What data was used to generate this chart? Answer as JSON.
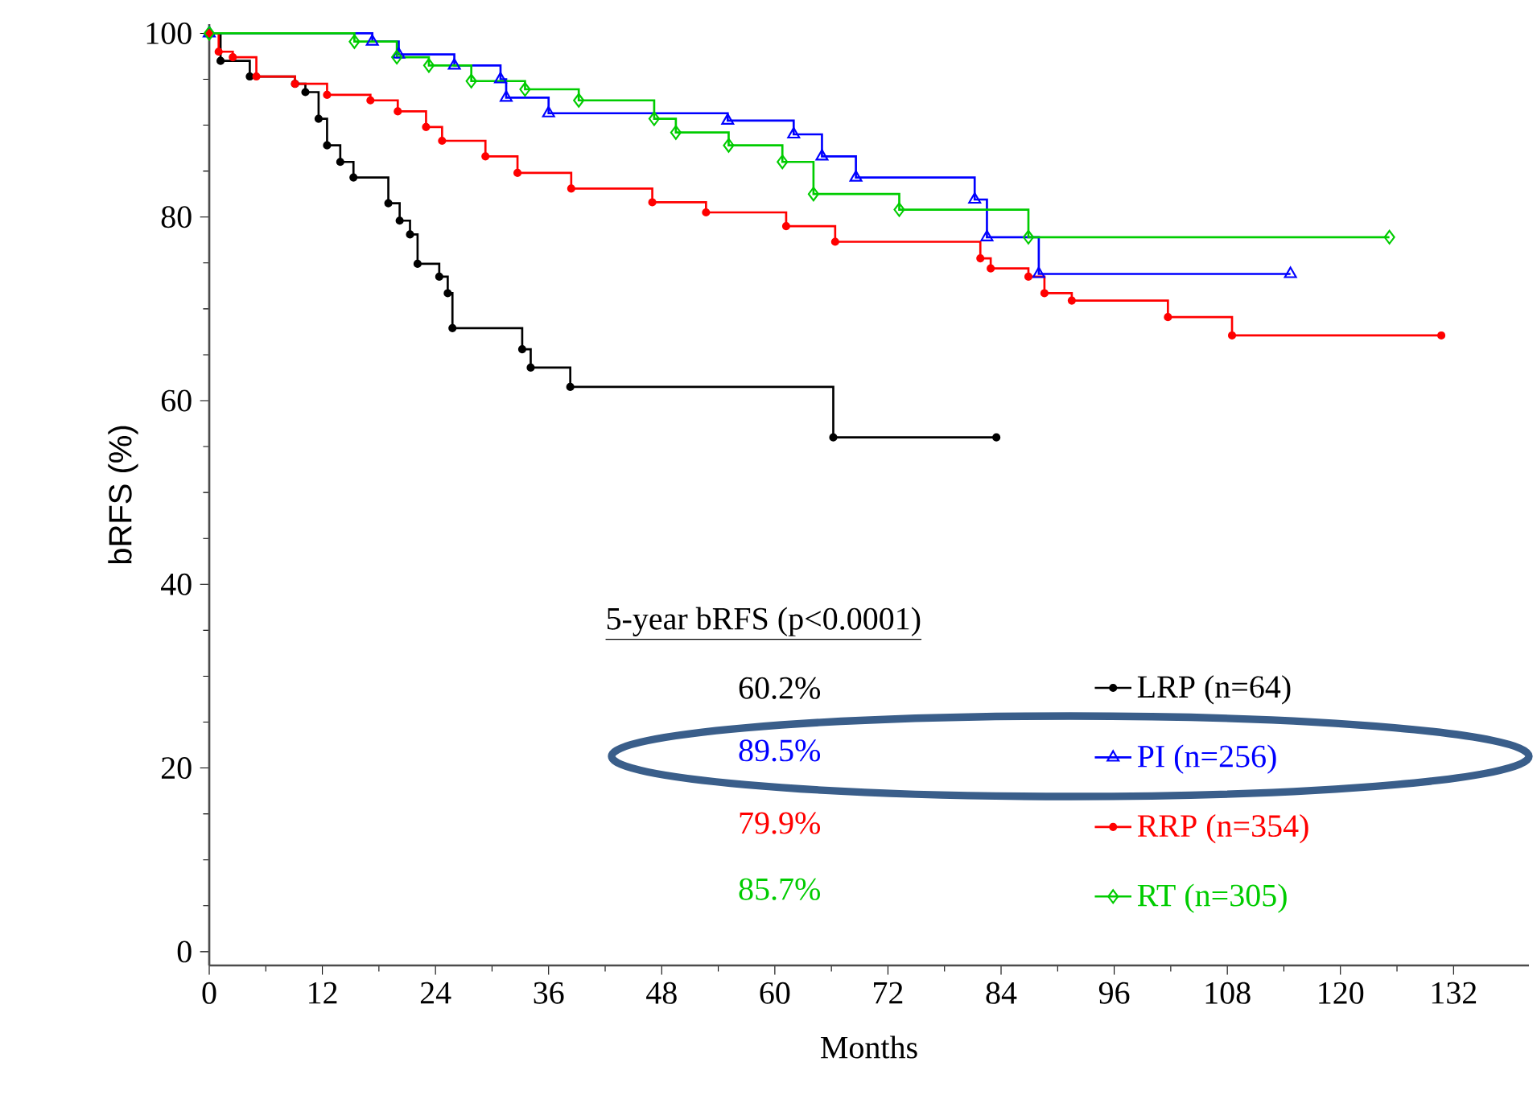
{
  "chart_data": {
    "type": "step",
    "xlabel": "Months",
    "ylabel": "bRFS (%)",
    "xlim": [
      0,
      140
    ],
    "ylim": [
      -1.5,
      101
    ],
    "xticks": [
      0,
      12,
      24,
      36,
      48,
      60,
      72,
      84,
      96,
      108,
      120,
      132
    ],
    "yticks": [
      0,
      20,
      40,
      60,
      80,
      100
    ],
    "grid": false,
    "legend": "bottom right",
    "annotations": [
      "5-year bRFS (p<0.0001)",
      "60.2%",
      "89.5%",
      "79.9%",
      "85.7%"
    ],
    "series": [
      {
        "name": "LRP (n=64)",
        "color": "#000000",
        "marker": "circle",
        "x": [
          0,
          1.2,
          4.3,
          9.1,
          10.2,
          11.6,
          12.5,
          13.9,
          15.3,
          19.0,
          20.2,
          21.3,
          22.1,
          24.4,
          25.3,
          25.8,
          33.2,
          34.1,
          38.3,
          66.2,
          83.5
        ],
        "values": [
          100,
          97,
          95.3,
          94.5,
          93.6,
          90.7,
          87.8,
          86,
          84.3,
          81.5,
          79.6,
          78.1,
          74.9,
          73.5,
          71.7,
          67.9,
          65.6,
          63.6,
          61.5,
          56,
          56
        ]
      },
      {
        "name": "PI (n=256)",
        "color": "#0000ff",
        "marker": "triangle",
        "x": [
          0,
          17.3,
          20.1,
          26,
          30.9,
          31.5,
          36,
          55,
          62,
          65,
          68.6,
          81.2,
          82.5,
          88,
          114.7
        ],
        "values": [
          100,
          99.1,
          97.7,
          96.5,
          95,
          93,
          91.3,
          90.5,
          89,
          86.6,
          84.3,
          81.9,
          77.8,
          73.8,
          73.8
        ]
      },
      {
        "name": "RRP (n=354)",
        "color": "#ff0000",
        "marker": "circle",
        "x": [
          0,
          1,
          2.5,
          5,
          9.1,
          12.5,
          17.1,
          20,
          23,
          24.7,
          29.3,
          32.7,
          38.4,
          47,
          52.7,
          61.2,
          66.4,
          81.8,
          82.9,
          86.9,
          88.6,
          91.5,
          101.7,
          108.5,
          130.7
        ],
        "values": [
          100,
          98,
          97.4,
          95.3,
          94.5,
          93.3,
          92.7,
          91.5,
          89.8,
          88.3,
          86.6,
          84.8,
          83.1,
          81.6,
          80.5,
          79,
          77.3,
          75.5,
          74.4,
          73.5,
          71.7,
          70.9,
          69.1,
          67.1,
          67.1
        ]
      },
      {
        "name": "RT (n=305)",
        "color": "#00cc00",
        "marker": "diamond",
        "x": [
          0,
          15.4,
          19.9,
          23.3,
          27.8,
          33.5,
          39.2,
          47.2,
          49.5,
          55.1,
          60.8,
          64.1,
          73.2,
          86.9,
          125.2
        ],
        "values": [
          100,
          99.1,
          97.4,
          96.5,
          94.8,
          93.9,
          92.7,
          90.7,
          89.2,
          87.8,
          86,
          82.5,
          80.8,
          77.8,
          77.8
        ]
      }
    ]
  }
}
